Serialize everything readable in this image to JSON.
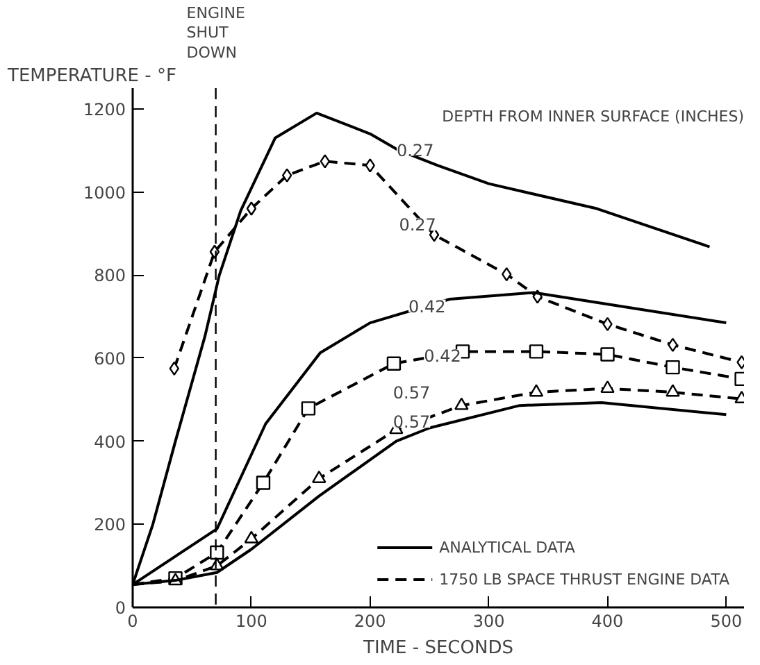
{
  "chart_data": {
    "type": "line",
    "xlabel": "TIME - SECONDS",
    "ylabel": "TEMPERATURE - °F",
    "xlim": [
      0,
      515
    ],
    "ylim": [
      0,
      1250
    ],
    "xticks": [
      0,
      100,
      200,
      300,
      400,
      500
    ],
    "yticks": [
      0,
      200,
      400,
      600,
      800,
      1000,
      1200
    ],
    "grid": false,
    "legend": "bottom right",
    "series": [
      {
        "name": "ANALYTICAL DATA",
        "color": "#000000",
        "line_style": "solid",
        "marker": "none",
        "x": [
          0,
          17,
          36,
          61,
          73,
          91,
          120,
          155,
          200,
          223,
          257,
          300,
          391,
          486
        ],
        "values": [
          55,
          200,
          400,
          654,
          800,
          955,
          1130,
          1190,
          1140,
          1102,
          1064,
          1020,
          960,
          868
        ]
      },
      {
        "name": "1750 LB SPACE THRUST ENGINE DATA",
        "color": "#000000",
        "line_style": "dashed",
        "marker": "diamond",
        "x": [
          35,
          69,
          100,
          130,
          162,
          200,
          254,
          315,
          341,
          400,
          455,
          513
        ],
        "values": [
          575,
          856,
          960,
          1040,
          1074,
          1064,
          897,
          802,
          748,
          682,
          632,
          590
        ]
      },
      {
        "color": "#000000",
        "line_style": "solid",
        "marker": "none",
        "x": [
          0,
          71,
          112,
          158,
          200,
          267,
          338,
          429,
          500
        ],
        "values": [
          55,
          189,
          442,
          613,
          685,
          742,
          758,
          717,
          685
        ]
      },
      {
        "color": "#000000",
        "line_style": "dashed",
        "marker": "square",
        "x": [
          0,
          36,
          71,
          110,
          148,
          220,
          278,
          340,
          400,
          455,
          513
        ],
        "values": [
          55,
          70,
          132,
          300,
          479,
          587,
          616,
          616,
          609,
          578,
          550
        ]
      },
      {
        "color": "#000000",
        "line_style": "dashed",
        "marker": "triangle",
        "x": [
          0,
          36,
          71,
          100,
          157,
          222,
          277,
          340,
          400,
          455,
          513
        ],
        "values": [
          55,
          64,
          100,
          165,
          310,
          428,
          486,
          518,
          527,
          518,
          502
        ]
      },
      {
        "color": "#000000",
        "line_style": "solid",
        "marker": "none",
        "x": [
          0,
          36,
          71,
          100,
          157,
          222,
          250,
          326,
          395,
          500
        ],
        "values": [
          55,
          65,
          84,
          140,
          268,
          400,
          432,
          486,
          493,
          464
        ]
      }
    ],
    "ref_lines": [
      {
        "axis": "x",
        "value": 70,
        "label": "ENGINE\nSHUT\nDOWN",
        "color": "#000000",
        "line_style": "dashed"
      }
    ],
    "annotations": [
      "DEPTH FROM INNER SURFACE (INCHES)",
      {
        "text": "0.27",
        "x": 238,
        "y": 1102
      },
      {
        "text": "0.27",
        "x": 240,
        "y": 922
      },
      {
        "text": "0.42",
        "x": 248,
        "y": 726
      },
      {
        "text": "0.42",
        "x": 261,
        "y": 606
      },
      {
        "text": "0.57",
        "x": 235,
        "y": 518
      },
      {
        "text": "0.57",
        "x": 235,
        "y": 448
      }
    ]
  }
}
